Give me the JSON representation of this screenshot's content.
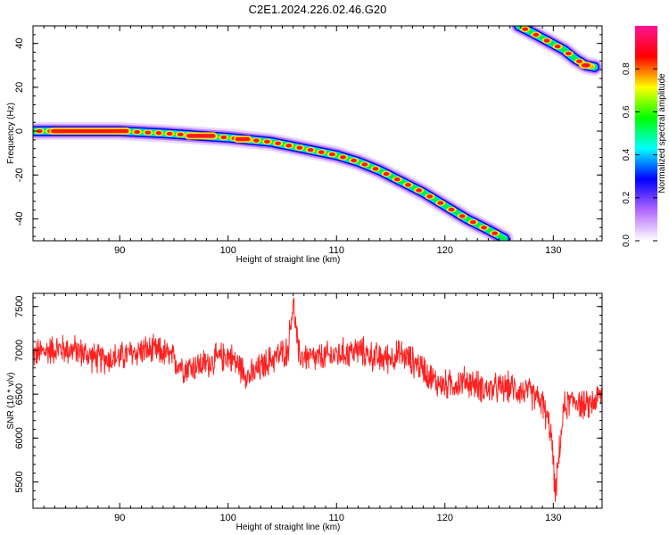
{
  "title": "C2E1.2024.226.02.46.G20",
  "chart_data": [
    {
      "type": "heatmap",
      "xlabel": "Height of straight line (km)",
      "ylabel": "Frequency (Hz)",
      "xlim": [
        82,
        134.5
      ],
      "ylim": [
        -50,
        48
      ],
      "xticks": [
        90,
        100,
        110,
        120,
        130
      ],
      "yticks": [
        -40,
        -20,
        0,
        20,
        40
      ],
      "colorbar": {
        "label": "Normalized spectral amplitude",
        "range": [
          0,
          1
        ],
        "ticks": [
          "0.0",
          "0.2",
          "0.4",
          "0.6",
          "0.8"
        ],
        "colors": [
          "#ffffff",
          "#b266ff",
          "#0000ff",
          "#00ffff",
          "#00ff00",
          "#ffff00",
          "#ff0000",
          "#ff1493"
        ]
      },
      "tracks": [
        {
          "name": "",
          "x": [
            82,
            86,
            90,
            94,
            97,
            100,
            102,
            104,
            106,
            108,
            110,
            112,
            114,
            116,
            118,
            120,
            122,
            124,
            125.5
          ],
          "y": [
            0,
            0,
            0,
            -1,
            -2,
            -3,
            -4,
            -5,
            -7,
            -9,
            -11,
            -14,
            -18,
            -23,
            -28,
            -34,
            -40,
            -45,
            -49
          ]
        },
        {
          "name": "",
          "x": [
            126.8,
            128,
            129.5,
            131,
            132,
            133,
            134
          ],
          "y": [
            48,
            45,
            41,
            37,
            33,
            30,
            29
          ]
        }
      ],
      "gridlines": false
    },
    {
      "type": "line",
      "xlabel": "Height of straight line (km)",
      "ylabel": "SNR (10 * v/v)",
      "xlim": [
        82,
        134.5
      ],
      "ylim": [
        5200,
        7650
      ],
      "xticks": [
        90,
        100,
        110,
        120,
        130
      ],
      "yticks": [
        5500,
        6000,
        6500,
        7000,
        7500
      ],
      "series": [
        {
          "name": "",
          "color": "#ff2020",
          "x": [
            82,
            84,
            86,
            88,
            90,
            92,
            94,
            96,
            98,
            100,
            102,
            104,
            105.5,
            106,
            106.5,
            108,
            110,
            112,
            114,
            116,
            118,
            119,
            120,
            122,
            124,
            126,
            128,
            129,
            129.8,
            130.2,
            130.6,
            131,
            132,
            133,
            134,
            134.5
          ],
          "y": [
            6950,
            7020,
            7000,
            6900,
            6920,
            7000,
            6980,
            6800,
            6850,
            6950,
            6700,
            6900,
            7000,
            7550,
            6950,
            6900,
            6950,
            7000,
            6900,
            6950,
            6800,
            6650,
            6600,
            6650,
            6550,
            6580,
            6500,
            6400,
            6050,
            5350,
            5900,
            6350,
            6450,
            6350,
            6450,
            6500
          ]
        }
      ],
      "noise_amplitude": 170,
      "gridlines": false
    }
  ]
}
